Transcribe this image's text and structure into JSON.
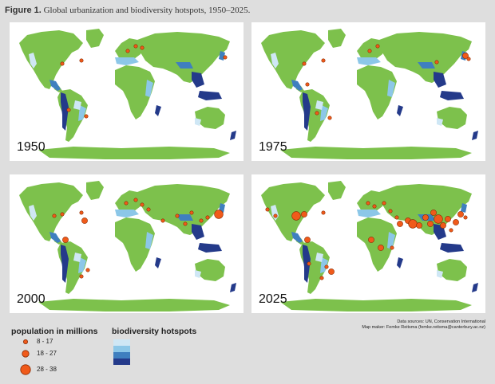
{
  "figure": {
    "caption_label": "Figure 1.",
    "caption_text": "Global urbanization and biodiversity hotspots, 1950–2025."
  },
  "panels": [
    {
      "year": "1950",
      "city_count": 8
    },
    {
      "year": "1975",
      "city_count": 10
    },
    {
      "year": "2000",
      "city_count": 18
    },
    {
      "year": "2025",
      "city_count": 32
    }
  ],
  "sources": {
    "line1": "Data sources: UN, Conservation International",
    "line2": "Map maker: Femke Reitsma (femke.reitsma@canterbury.ac.nz)"
  },
  "legend": {
    "population_title": "population in millions",
    "population_items": [
      {
        "label": "8 - 17",
        "size": "small"
      },
      {
        "label": "18 - 27",
        "size": "medium"
      },
      {
        "label": "28 - 38",
        "size": "large"
      }
    ],
    "biodiversity_title": "biodiversity hotspots",
    "biodiversity_swatches": [
      "#cfe7f5",
      "#8cc7e8",
      "#3f7fbf",
      "#243a8a"
    ]
  },
  "colors": {
    "land": "#7dc14c",
    "city": "#f05a1a",
    "city_outline": "#8a2a00",
    "background": "#dedede"
  }
}
